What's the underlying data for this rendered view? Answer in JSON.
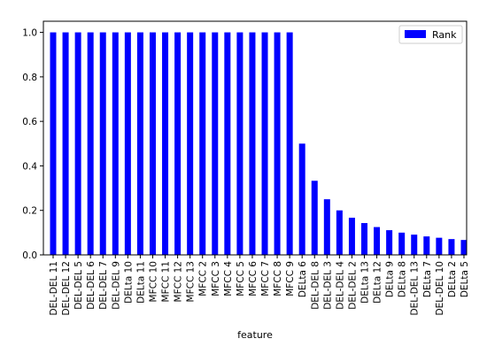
{
  "chart_data": {
    "type": "bar",
    "xlabel": "feature",
    "ylabel": "",
    "ylim": [
      0,
      1.05
    ],
    "yticks": [
      "0.0",
      "0.2",
      "0.4",
      "0.6",
      "0.8",
      "1.0"
    ],
    "legend": {
      "position": "top-right"
    },
    "grid": false,
    "categories": [
      "DEL-DEL 11",
      "DEL-DEL 12",
      "DEL-DEL 5",
      "DEL-DEL 6",
      "DEL-DEL 7",
      "DEL-DEL 9",
      "DELta 10",
      "DELta 11",
      "MFCC 10",
      "MFCC 11",
      "MFCC 12",
      "MFCC 13",
      "MFCC 2",
      "MFCC 3",
      "MFCC 4",
      "MFCC 5",
      "MFCC 6",
      "MFCC 7",
      "MFCC 8",
      "MFCC 9",
      "DELta 6",
      "DEL-DEL 8",
      "DEL-DEL 3",
      "DEL-DEL 4",
      "DEL-DEL 2",
      "DELta 13",
      "DELta 12",
      "DELta 9",
      "DELta 8",
      "DEL-DEL 13",
      "DELta 7",
      "DEL-DEL 10",
      "DELta 2",
      "DELta 5"
    ],
    "series": [
      {
        "name": "Rank",
        "color": "#0000ff",
        "values": [
          1.0,
          1.0,
          1.0,
          1.0,
          1.0,
          1.0,
          1.0,
          1.0,
          1.0,
          1.0,
          1.0,
          1.0,
          1.0,
          1.0,
          1.0,
          1.0,
          1.0,
          1.0,
          1.0,
          1.0,
          0.5,
          0.333,
          0.25,
          0.2,
          0.167,
          0.143,
          0.125,
          0.111,
          0.1,
          0.091,
          0.083,
          0.077,
          0.071,
          0.067
        ]
      }
    ]
  }
}
